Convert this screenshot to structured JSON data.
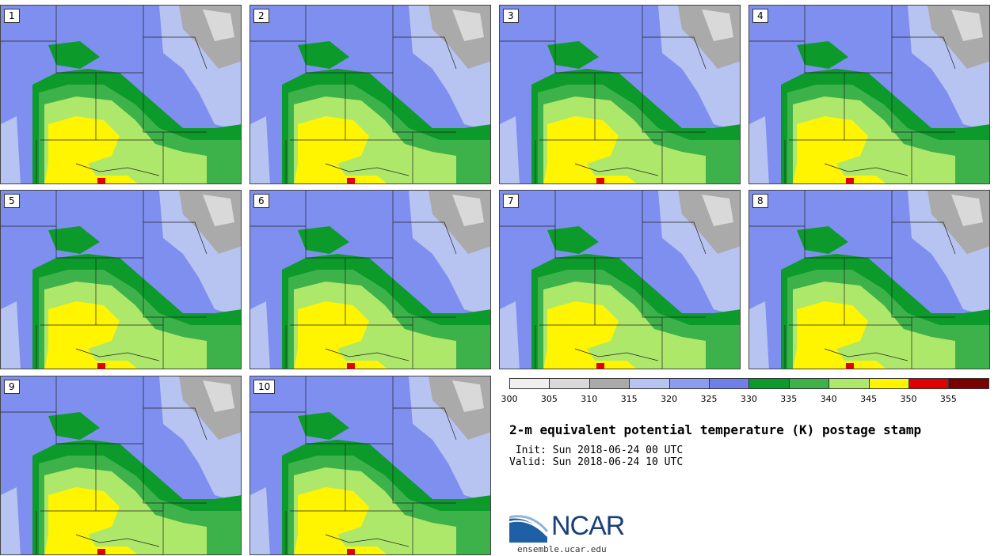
{
  "panels": [
    {
      "label": "1"
    },
    {
      "label": "2"
    },
    {
      "label": "3"
    },
    {
      "label": "4"
    },
    {
      "label": "5"
    },
    {
      "label": "6"
    },
    {
      "label": "7"
    },
    {
      "label": "8"
    },
    {
      "label": "9"
    },
    {
      "label": "10"
    }
  ],
  "colorbar": {
    "ticks": [
      "300",
      "305",
      "310",
      "315",
      "320",
      "325",
      "330",
      "335",
      "340",
      "345",
      "350",
      "355"
    ],
    "colors": [
      "#efefef",
      "#d9d9d9",
      "#aaaaaa",
      "#b7c4f2",
      "#8b9df0",
      "#6f7fe8",
      "#0c9a2a",
      "#3db24a",
      "#aee86a",
      "#fff500",
      "#e10000",
      "#7c0000"
    ]
  },
  "title": "2-m equivalent potential temperature (K) postage stamp",
  "init": " Init: Sun 2018-06-24 00 UTC",
  "valid": "Valid: Sun 2018-06-24 10 UTC",
  "logo": {
    "name": "NCAR",
    "url": "ensemble.ucar.edu"
  }
}
